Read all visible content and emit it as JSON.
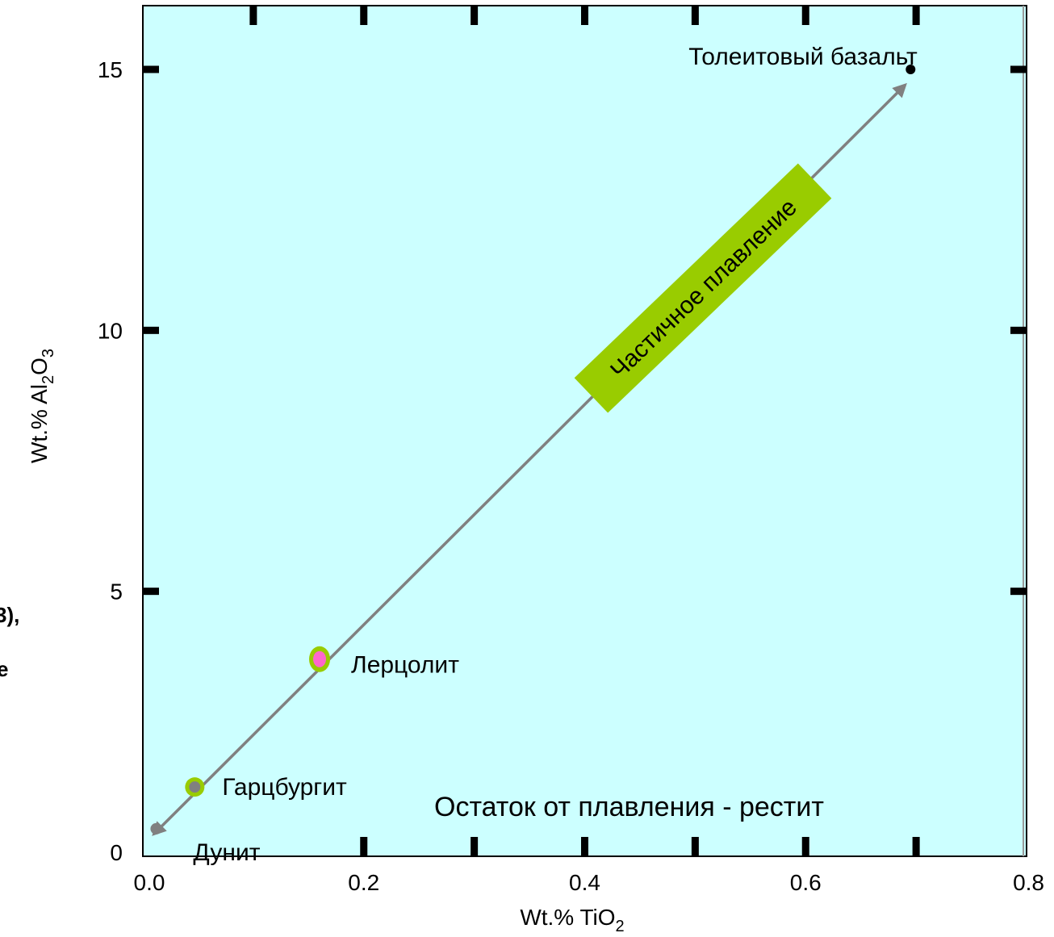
{
  "chart_data": {
    "type": "scatter",
    "title": "",
    "xlabel": {
      "prefix": "Wt.% TiO",
      "sub": "2"
    },
    "ylabel": {
      "prefix": "Wt.% Al",
      "sub1": "2",
      "mid": "O",
      "sub2": "3"
    },
    "xlim": [
      0,
      0.8
    ],
    "ylim": [
      0,
      16
    ],
    "x_ticks": [
      {
        "value": 0.0,
        "label": "0.0"
      },
      {
        "value": 0.2,
        "label": "0.2"
      },
      {
        "value": 0.4,
        "label": "0.4"
      },
      {
        "value": 0.6,
        "label": "0.6"
      },
      {
        "value": 0.8,
        "label": "0.8"
      }
    ],
    "y_ticks": [
      {
        "value": 0,
        "label": "0"
      },
      {
        "value": 5,
        "label": "5"
      },
      {
        "value": 10,
        "label": "10"
      },
      {
        "value": 15,
        "label": "15"
      }
    ],
    "grid": false,
    "background": "#ccffff",
    "points": [
      {
        "name": "Толеитовый базальт",
        "x": 0.695,
        "y": 15.0,
        "fill": "#000000",
        "ring": null
      },
      {
        "name": "Лерцолит",
        "x": 0.16,
        "y": 3.7,
        "fill": "#ff66cc",
        "ring": "#99cc00"
      },
      {
        "name": "Гарцбургит",
        "x": 0.047,
        "y": 1.25,
        "fill": "#808080",
        "ring": "#99cc00"
      },
      {
        "name": "Дунит",
        "x": 0.012,
        "y": 0.45,
        "fill": "#808080",
        "ring": null
      }
    ],
    "trend": {
      "from": [
        0.01,
        0.35
      ],
      "to": [
        0.69,
        14.7
      ],
      "color": "#808080"
    },
    "annotations": {
      "partial_melting": "Частичное плавление",
      "partial_melting_bg": "#99cc00",
      "residue": "Остаток от плавления - рестит"
    },
    "cut_off_text": [
      "3),",
      "е"
    ]
  }
}
